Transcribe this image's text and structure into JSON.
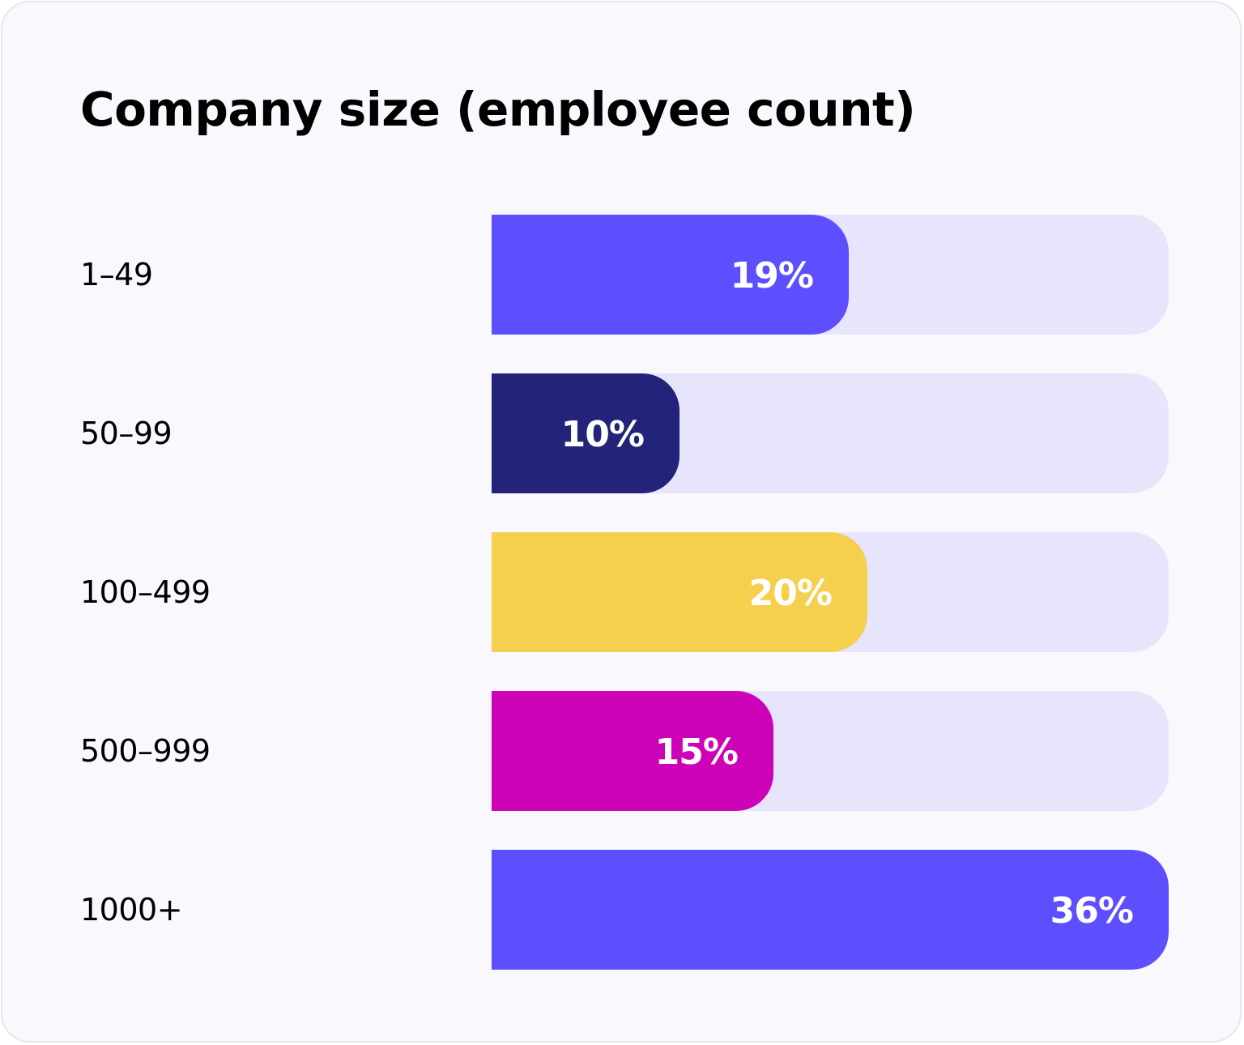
{
  "chart_data": {
    "type": "bar",
    "orientation": "horizontal",
    "title": "Company size (employee count)",
    "xlabel": "",
    "ylabel": "",
    "xlim": [
      0,
      36
    ],
    "categories": [
      "1–49",
      "50–99",
      "100–499",
      "500–999",
      "1000+"
    ],
    "values": [
      19,
      10,
      20,
      15,
      36
    ],
    "value_labels": [
      "19%",
      "10%",
      "20%",
      "15%",
      "36%"
    ],
    "colors": [
      "#5d4ffe",
      "#23237a",
      "#f5d04f",
      "#cc03b6",
      "#5d4ffe"
    ],
    "track_color": "#e7e5fb"
  }
}
